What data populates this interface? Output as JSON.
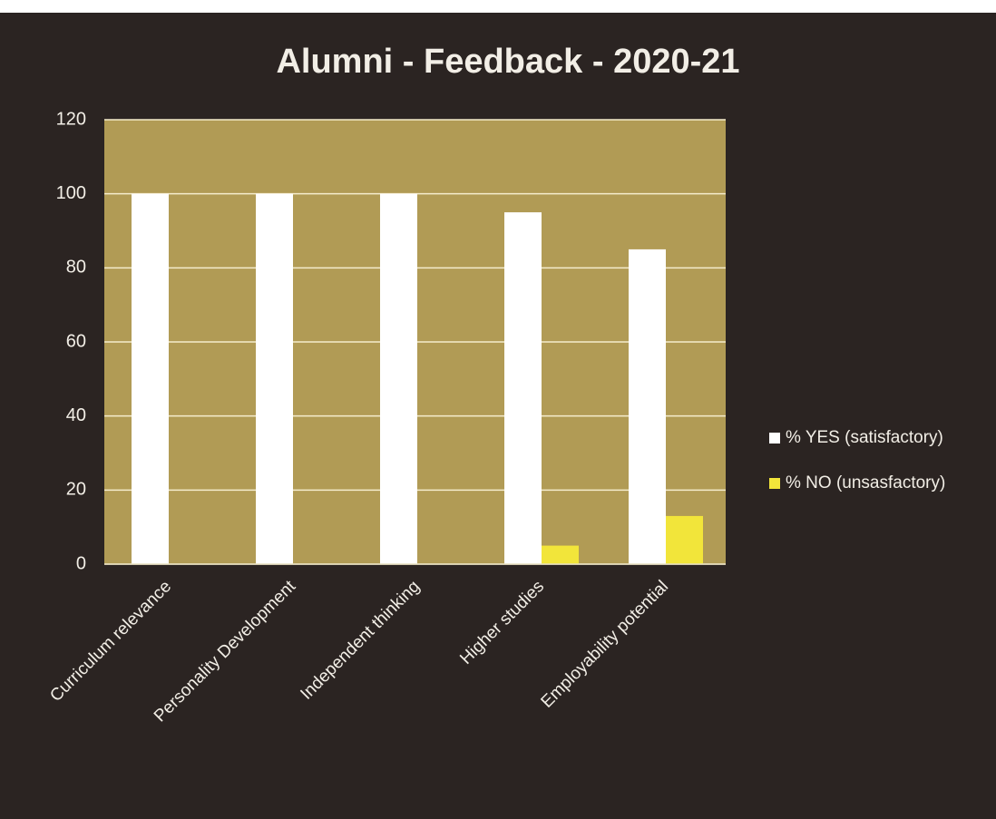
{
  "chart_data": {
    "type": "bar",
    "title": "Alumni - Feedback - 2020-21",
    "categories": [
      "Curriculum relevance",
      "Personality Development",
      "Independent thinking",
      "Higher studies",
      "Employability potential"
    ],
    "series": [
      {
        "name": "% YES (satisfactory)",
        "color": "#ffffff",
        "values": [
          100,
          100,
          100,
          95,
          85
        ]
      },
      {
        "name": "% NO (unsasfactory)",
        "color": "#f2e53a",
        "values": [
          0,
          0,
          0,
          5,
          13
        ]
      }
    ],
    "ylim": [
      0,
      120
    ],
    "yticks": [
      0,
      20,
      40,
      60,
      80,
      100,
      120
    ],
    "grid": true,
    "legend": "right"
  }
}
